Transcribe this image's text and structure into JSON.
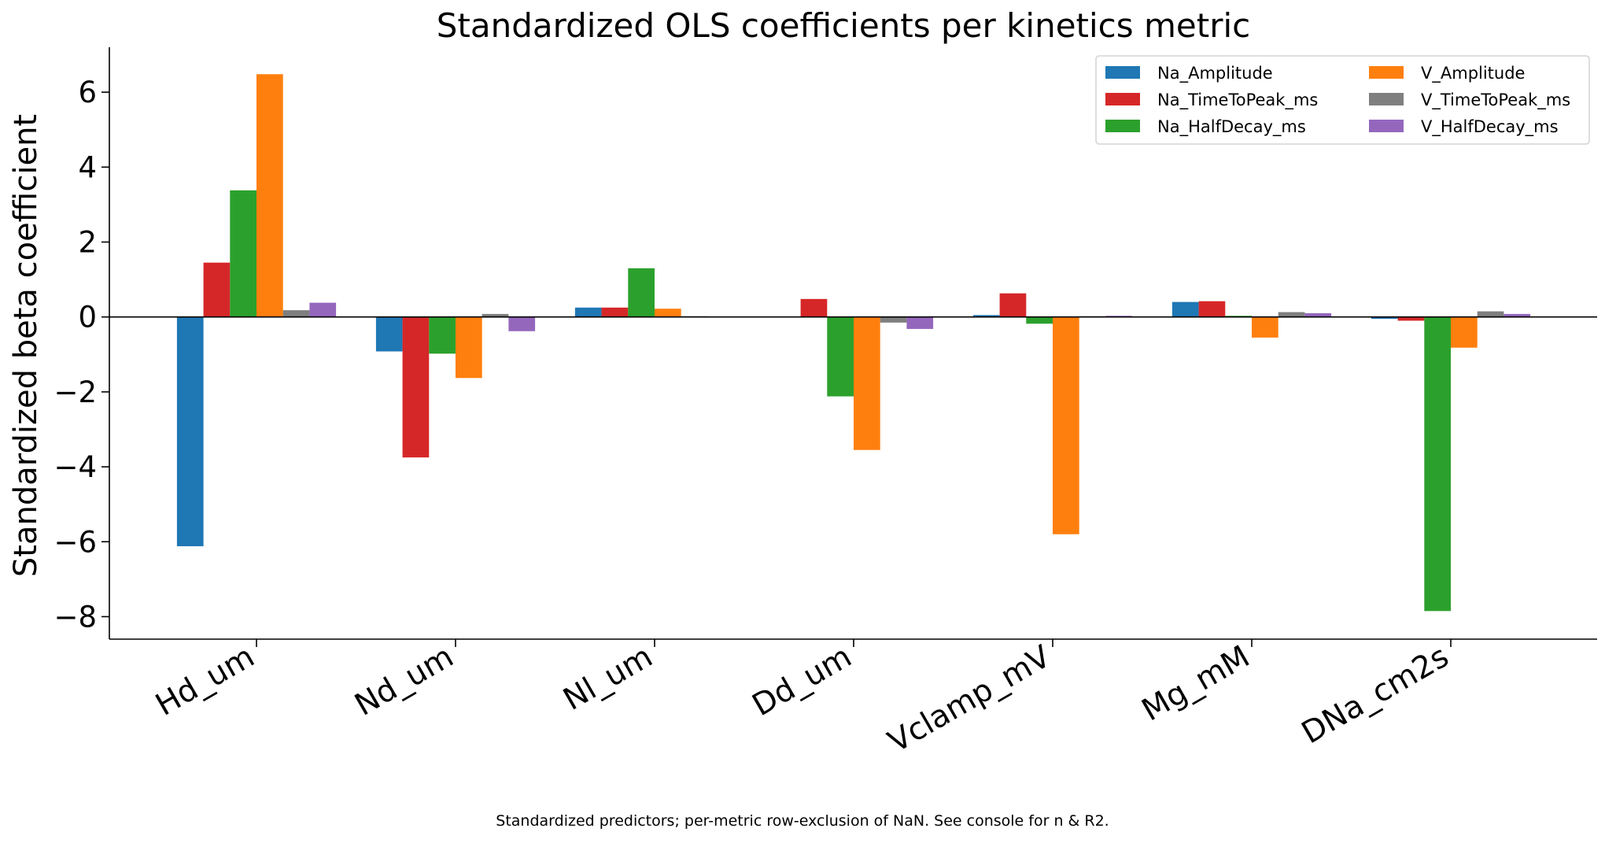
{
  "chart_data": {
    "type": "bar",
    "title": "Standardized OLS coefficients per kinetics metric",
    "xlabel": "",
    "ylabel": "Standardized beta coefficient",
    "caption": "Standardized predictors; per-metric row-exclusion of NaN. See console for n & R2.",
    "categories": [
      "Hd_um",
      "Nd_um",
      "Nl_um",
      "Dd_um",
      "Vclamp_mV",
      "Mg_mM",
      "DNa_cm2s"
    ],
    "ylim": [
      -8.6,
      7.2
    ],
    "yticks": [
      -8,
      -6,
      -4,
      -2,
      0,
      2,
      4,
      6
    ],
    "ytick_labels": [
      "−8",
      "−6",
      "−4",
      "−2",
      "0",
      "2",
      "4",
      "6"
    ],
    "grid": false,
    "legend_position": "top-right",
    "series": [
      {
        "name": "Na_Amplitude",
        "color": "#1f77b4",
        "values": [
          -6.12,
          -0.92,
          0.25,
          0.0,
          0.05,
          0.4,
          -0.05
        ]
      },
      {
        "name": "Na_TimeToPeak_ms",
        "color": "#d62728",
        "values": [
          1.45,
          -3.75,
          0.25,
          0.48,
          0.63,
          0.42,
          -0.1
        ]
      },
      {
        "name": "Na_HalfDecay_ms",
        "color": "#2ca02c",
        "values": [
          3.38,
          -0.98,
          1.3,
          -2.12,
          -0.18,
          0.03,
          -7.85
        ]
      },
      {
        "name": "V_Amplitude",
        "color": "#ff7f0e",
        "values": [
          6.48,
          -1.63,
          0.22,
          -3.55,
          -5.8,
          -0.55,
          -0.82
        ]
      },
      {
        "name": "V_TimeToPeak_ms",
        "color": "#7f7f7f",
        "values": [
          0.18,
          0.08,
          0.02,
          -0.15,
          0.02,
          0.13,
          0.15
        ]
      },
      {
        "name": "V_HalfDecay_ms",
        "color": "#9467bd",
        "values": [
          0.38,
          -0.38,
          0.0,
          -0.32,
          0.03,
          0.1,
          0.08
        ]
      }
    ]
  }
}
